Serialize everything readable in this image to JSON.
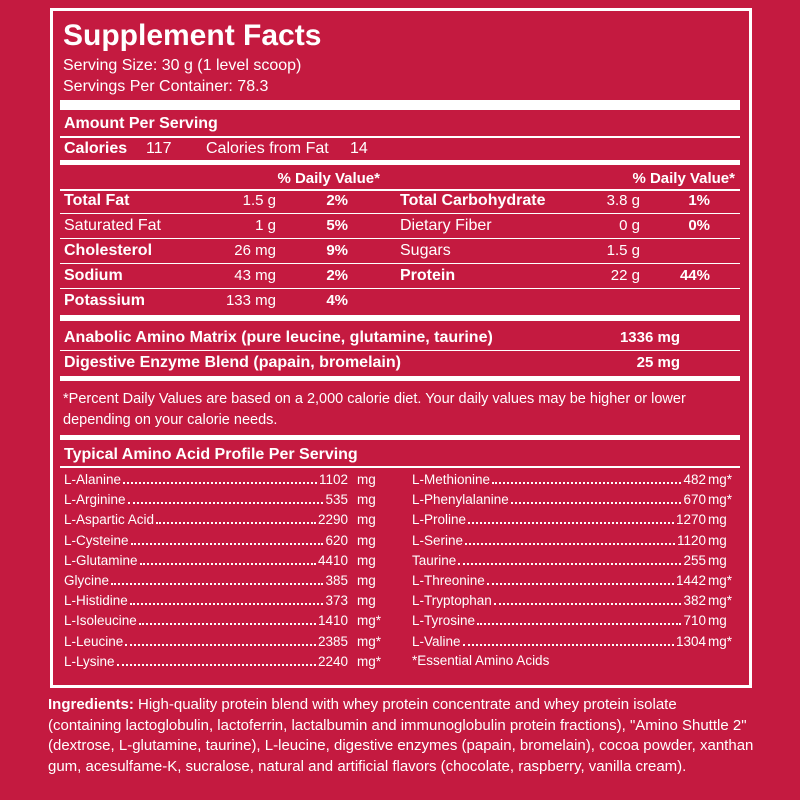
{
  "header": {
    "title": "Supplement Facts",
    "serving_size": "Serving Size: 30 g (1 level scoop)",
    "servings_per_container": "Servings Per Container: 78.3"
  },
  "amount_per_serving": "Amount Per Serving",
  "calories": {
    "label": "Calories",
    "value": "117",
    "fat_label": "Calories from Fat",
    "fat_value": "14"
  },
  "nutrients_left": {
    "dv_header": "% Daily Value*",
    "rows": [
      {
        "name": "Total Fat",
        "amount": "1.5 g",
        "dv": "2%",
        "bold": true
      },
      {
        "name": "Saturated Fat",
        "amount": "1 g",
        "dv": "5%",
        "bold": false
      },
      {
        "name": "Cholesterol",
        "amount": "26 mg",
        "dv": "9%",
        "bold": true
      },
      {
        "name": "Sodium",
        "amount": "43 mg",
        "dv": "2%",
        "bold": true
      },
      {
        "name": "Potassium",
        "amount": "133 mg",
        "dv": "4%",
        "bold": true
      }
    ]
  },
  "nutrients_right": {
    "dv_header": "% Daily Value*",
    "rows": [
      {
        "name": "Total Carbohydrate",
        "amount": "3.8 g",
        "dv": "1%",
        "bold": true
      },
      {
        "name": "Dietary Fiber",
        "amount": "0 g",
        "dv": "0%",
        "bold": false
      },
      {
        "name": "Sugars",
        "amount": "1.5 g",
        "dv": null,
        "bold": false
      },
      {
        "name": "Protein",
        "amount": "22 g",
        "dv": "44%",
        "bold": true
      }
    ]
  },
  "blends": [
    {
      "name": "Anabolic Amino Matrix (pure leucine, glutamine, taurine)",
      "amount": "1336 mg"
    },
    {
      "name": "Digestive Enzyme Blend (papain, bromelain)",
      "amount": "25 mg"
    }
  ],
  "footnote": "*Percent Daily Values are based on a 2,000 calorie diet. Your daily values may be higher or lower depending on your calorie needs.",
  "amino": {
    "title": "Typical Amino Acid Profile Per Serving",
    "left": [
      {
        "name": "L-Alanine",
        "amount": 1102,
        "unit": "mg"
      },
      {
        "name": "L-Arginine",
        "amount": 535,
        "unit": "mg"
      },
      {
        "name": "L-Aspartic Acid",
        "amount": 2290,
        "unit": "mg"
      },
      {
        "name": "L-Cysteine",
        "amount": 620,
        "unit": "mg"
      },
      {
        "name": "L-Glutamine",
        "amount": 4410,
        "unit": "mg"
      },
      {
        "name": "Glycine",
        "amount": 385,
        "unit": "mg"
      },
      {
        "name": "L-Histidine",
        "amount": 373,
        "unit": "mg"
      },
      {
        "name": "L-Isoleucine",
        "amount": 1410,
        "unit": "mg*"
      },
      {
        "name": "L-Leucine",
        "amount": 2385,
        "unit": "mg*"
      },
      {
        "name": "L-Lysine",
        "amount": 2240,
        "unit": "mg*"
      }
    ],
    "right": [
      {
        "name": "L-Methionine",
        "amount": 482,
        "unit": "mg*"
      },
      {
        "name": "L-Phenylalanine",
        "amount": 670,
        "unit": "mg*"
      },
      {
        "name": "L-Proline",
        "amount": 1270,
        "unit": "mg"
      },
      {
        "name": "L-Serine",
        "amount": 1120,
        "unit": "mg"
      },
      {
        "name": "Taurine",
        "amount": 255,
        "unit": "mg"
      },
      {
        "name": "L-Threonine",
        "amount": 1442,
        "unit": "mg*"
      },
      {
        "name": "L-Tryptophan",
        "amount": 382,
        "unit": "mg*"
      },
      {
        "name": "L-Tyrosine",
        "amount": 710,
        "unit": "mg"
      },
      {
        "name": "L-Valine",
        "amount": 1304,
        "unit": "mg*"
      }
    ],
    "note": "*Essential Amino Acids"
  },
  "ingredients": {
    "label": "Ingredients:",
    "text": "High-quality protein blend with whey protein concentrate and whey protein isolate (containing lactoglobulin, lactoferrin, lactalbumin and immunoglobulin protein fractions), \"Amino Shuttle 2\" (dextrose, L-glutamine, taurine), L-leucine, digestive enzymes (papain, bromelain), cocoa powder, xanthan gum, acesulfame-K, sucralose, natural and artificial flavors (chocolate, raspberry, vanilla cream)."
  }
}
